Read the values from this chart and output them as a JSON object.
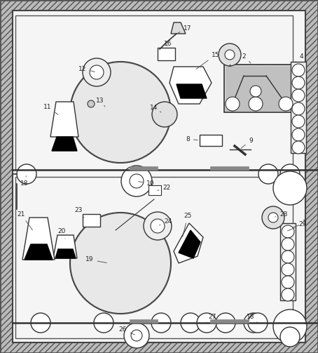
{
  "fig_width": 4.54,
  "fig_height": 5.03,
  "bg_color": "#cccccc",
  "inner_bg": "#f0f0f0",
  "line_color": "#333333",
  "label_fontsize": 6.5,
  "label_color": "#222222"
}
